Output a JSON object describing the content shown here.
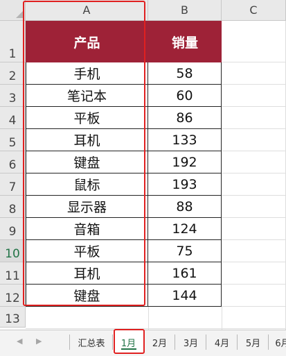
{
  "columns": [
    "A",
    "B",
    "C"
  ],
  "rows": [
    "1",
    "2",
    "3",
    "4",
    "5",
    "6",
    "7",
    "8",
    "9",
    "10",
    "11",
    "12",
    "13"
  ],
  "selected_row": "10",
  "table": {
    "headers": [
      "产品",
      "销量"
    ],
    "body": [
      [
        "手机",
        "58"
      ],
      [
        "笔记本",
        "60"
      ],
      [
        "平板",
        "86"
      ],
      [
        "耳机",
        "133"
      ],
      [
        "键盘",
        "192"
      ],
      [
        "鼠标",
        "193"
      ],
      [
        "显示器",
        "88"
      ],
      [
        "音箱",
        "124"
      ],
      [
        "平板",
        "75"
      ],
      [
        "耳机",
        "161"
      ],
      [
        "键盘",
        "144"
      ]
    ]
  },
  "sheet_tabs": [
    "汇总表",
    "1月",
    "2月",
    "3月",
    "4月",
    "5月",
    "6月"
  ],
  "active_tab": "1月",
  "colors": {
    "header_fill": "#9e2237",
    "highlight_border": "#e02020",
    "active_tab": "#217346"
  }
}
